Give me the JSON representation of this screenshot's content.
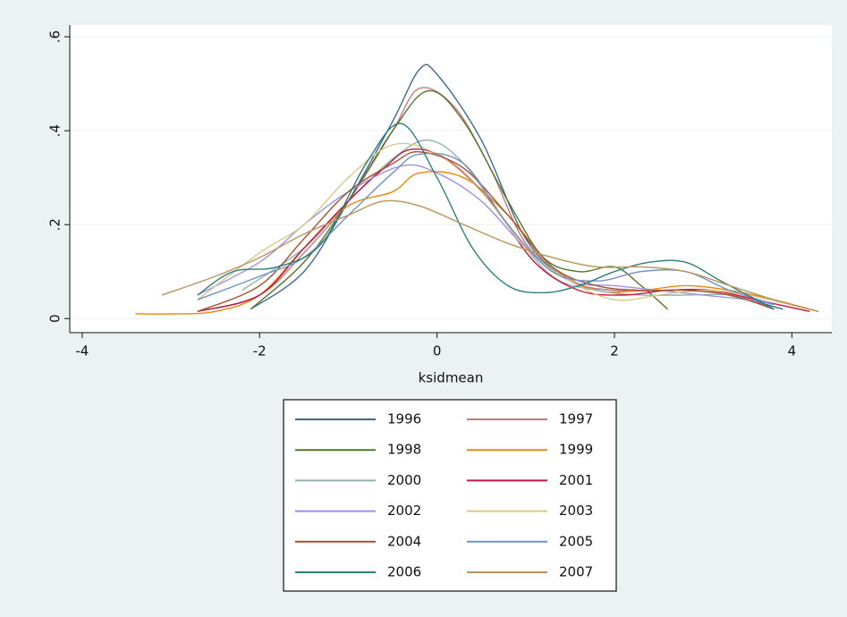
{
  "chart_data": {
    "type": "line",
    "x_label": "ksidmean",
    "xlim": [
      -4.14,
      4.45
    ],
    "xticks": [
      -4,
      -2,
      0,
      2,
      4
    ],
    "ylim": [
      -0.03,
      0.625
    ],
    "yticks": [
      0,
      {
        "value": 0.2,
        "label": ".2"
      },
      {
        "value": 0.4,
        "label": ".4"
      },
      {
        "value": 0.6,
        "label": ".6"
      }
    ],
    "grid": true,
    "legend": "bottom",
    "series": [
      {
        "name": "1996",
        "color": "#3e6a8f",
        "x": [
          -2.1,
          -1.5,
          -1,
          -0.5,
          -0.2,
          0,
          0.5,
          1,
          1.5,
          2,
          2.5,
          3,
          3.5,
          3.9
        ],
        "values": [
          0.02,
          0.1,
          0.25,
          0.42,
          0.53,
          0.52,
          0.38,
          0.17,
          0.08,
          0.06,
          0.06,
          0.06,
          0.04,
          0.02
        ]
      },
      {
        "name": "1997",
        "color": "#c47c7a",
        "x": [
          -2.7,
          -2,
          -1.5,
          -1,
          -0.5,
          -0.2,
          0.2,
          0.6,
          1,
          1.5,
          2,
          2.5,
          3,
          3.5,
          3.8
        ],
        "values": [
          0.015,
          0.05,
          0.14,
          0.25,
          0.4,
          0.49,
          0.45,
          0.32,
          0.16,
          0.08,
          0.06,
          0.06,
          0.06,
          0.04,
          0.02
        ]
      },
      {
        "name": "1998",
        "color": "#55752f",
        "x": [
          -2.1,
          -1.5,
          -1,
          -0.5,
          -0.1,
          0.3,
          0.8,
          1.2,
          1.6,
          2,
          2.3,
          2.6
        ],
        "values": [
          0.02,
          0.12,
          0.25,
          0.4,
          0.485,
          0.42,
          0.25,
          0.13,
          0.1,
          0.11,
          0.07,
          0.02
        ]
      },
      {
        "name": "1999",
        "color": "#e88a10",
        "x": [
          -3.4,
          -3,
          -2.5,
          -2,
          -1.5,
          -1,
          -0.5,
          -0.2,
          0.3,
          0.8,
          1.3,
          1.8,
          2.3,
          2.8,
          3.3,
          3.8,
          4.3
        ],
        "values": [
          0.01,
          0.01,
          0.015,
          0.05,
          0.15,
          0.24,
          0.27,
          0.31,
          0.3,
          0.22,
          0.11,
          0.06,
          0.06,
          0.07,
          0.06,
          0.04,
          0.015
        ]
      },
      {
        "name": "2000",
        "color": "#8fb3ab",
        "x": [
          -2.2,
          -1.5,
          -1,
          -0.5,
          -0.1,
          0.3,
          0.8,
          1.3,
          1.8,
          2.3,
          2.8,
          3.3,
          3.8
        ],
        "values": [
          0.06,
          0.15,
          0.25,
          0.34,
          0.38,
          0.33,
          0.2,
          0.09,
          0.06,
          0.05,
          0.05,
          0.05,
          0.03
        ]
      },
      {
        "name": "2001",
        "color": "#c8163f",
        "x": [
          -2.7,
          -2,
          -1.5,
          -1,
          -0.6,
          -0.3,
          0.1,
          0.6,
          1.1,
          1.6,
          2.1,
          2.6,
          3.1,
          3.6,
          4.2
        ],
        "values": [
          0.015,
          0.05,
          0.15,
          0.25,
          0.32,
          0.36,
          0.34,
          0.25,
          0.12,
          0.06,
          0.05,
          0.06,
          0.06,
          0.04,
          0.015
        ]
      },
      {
        "name": "2002",
        "color": "#a290e6",
        "x": [
          -2.7,
          -2,
          -1.5,
          -1,
          -0.4,
          0,
          0.5,
          1,
          1.5,
          2,
          2.5,
          3,
          3.5,
          3.8
        ],
        "values": [
          0.05,
          0.12,
          0.2,
          0.27,
          0.325,
          0.31,
          0.25,
          0.15,
          0.08,
          0.07,
          0.06,
          0.05,
          0.04,
          0.03
        ]
      },
      {
        "name": "2003",
        "color": "#d8c98c",
        "x": [
          -2.7,
          -2,
          -1.5,
          -1,
          -0.5,
          0,
          0.5,
          1,
          1.5,
          2,
          2.5,
          3,
          3.5,
          4.3
        ],
        "values": [
          0.04,
          0.14,
          0.2,
          0.3,
          0.37,
          0.35,
          0.27,
          0.15,
          0.08,
          0.04,
          0.05,
          0.06,
          0.05,
          0.015
        ]
      },
      {
        "name": "2004",
        "color": "#a5522e",
        "x": [
          -2.7,
          -2,
          -1.5,
          -1,
          -0.5,
          -0.2,
          0.3,
          0.8,
          1.3,
          1.8,
          2.3,
          2.8,
          3.3,
          3.8
        ],
        "values": [
          0.015,
          0.07,
          0.17,
          0.27,
          0.33,
          0.355,
          0.32,
          0.22,
          0.11,
          0.07,
          0.06,
          0.06,
          0.05,
          0.02
        ]
      },
      {
        "name": "2005",
        "color": "#7291c4",
        "x": [
          -2.7,
          -2,
          -1.5,
          -1,
          -0.5,
          -0.2,
          0.3,
          0.8,
          1.3,
          1.8,
          2.3,
          2.8,
          3.3,
          3.8
        ],
        "values": [
          0.04,
          0.09,
          0.13,
          0.22,
          0.31,
          0.35,
          0.33,
          0.2,
          0.1,
          0.08,
          0.1,
          0.1,
          0.06,
          0.03
        ]
      },
      {
        "name": "2006",
        "color": "#2f7f7c",
        "x": [
          -2.7,
          -2.3,
          -1.8,
          -1.3,
          -0.8,
          -0.4,
          0,
          0.4,
          0.8,
          1.2,
          1.6,
          2,
          2.4,
          2.8,
          3.2,
          3.8
        ],
        "values": [
          0.05,
          0.1,
          0.11,
          0.16,
          0.33,
          0.415,
          0.3,
          0.15,
          0.07,
          0.055,
          0.07,
          0.1,
          0.12,
          0.12,
          0.08,
          0.02
        ]
      },
      {
        "name": "2007",
        "color": "#b8955c",
        "x": [
          -3.1,
          -2.5,
          -2,
          -1.5,
          -1,
          -0.6,
          -0.2,
          0.3,
          0.8,
          1.3,
          1.8,
          2.3,
          2.8,
          3.3,
          3.8,
          4.3
        ],
        "values": [
          0.05,
          0.09,
          0.13,
          0.18,
          0.22,
          0.25,
          0.24,
          0.2,
          0.16,
          0.13,
          0.11,
          0.11,
          0.1,
          0.07,
          0.04,
          0.015
        ]
      }
    ]
  }
}
